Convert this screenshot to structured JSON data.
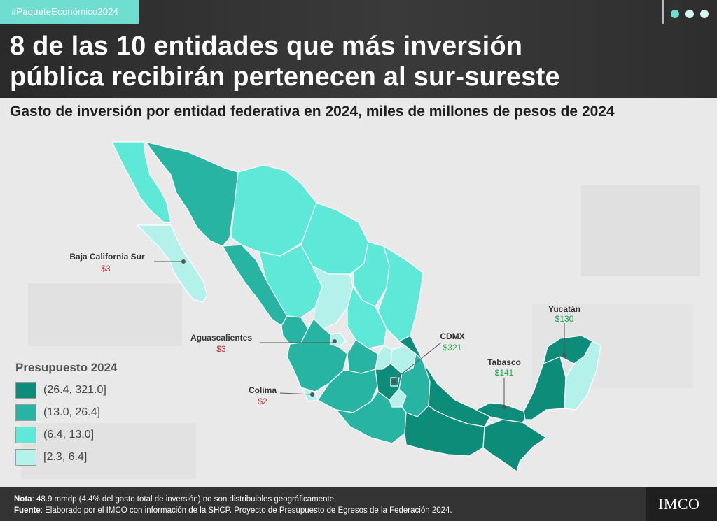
{
  "hashtag": "#PaqueteEconómico2024",
  "title_line1": "8 de las 10 entidades que más inversión",
  "title_line2": "pública recibirán pertenecen al sur-sureste",
  "subtitle": "Gasto de inversión por entidad federativa en 2024, miles de millones de pesos de 2024",
  "colors": {
    "bin1": "#0e8c7a",
    "bin2": "#28b4a2",
    "bin3": "#5ee8d8",
    "bin4": "#b4f1ea",
    "accent": "#6fded0",
    "low_value": "#c0303a",
    "high_value": "#18a84a"
  },
  "legend": {
    "title": "Presupuesto 2024",
    "items": [
      {
        "label": "(26.4, 321.0]",
        "color": "#0e8c7a"
      },
      {
        "label": "(13.0, 26.4]",
        "color": "#28b4a2"
      },
      {
        "label": "(6.4, 13.0]",
        "color": "#5ee8d8"
      },
      {
        "label": "[2.3, 6.4]",
        "color": "#b4f1ea"
      }
    ]
  },
  "callouts": [
    {
      "name": "Baja California Sur",
      "value": "$3",
      "tone": "low"
    },
    {
      "name": "Aguascalientes",
      "value": "$3",
      "tone": "low"
    },
    {
      "name": "Colima",
      "value": "$2",
      "tone": "low"
    },
    {
      "name": "CDMX",
      "value": "$321",
      "tone": "high"
    },
    {
      "name": "Tabasco",
      "value": "$141",
      "tone": "high"
    },
    {
      "name": "Yucatán",
      "value": "$130",
      "tone": "high"
    }
  ],
  "footer": {
    "note_label": "Nota",
    "note": ": 48.9 mmdp (4.4% del gasto total de inversión) no son distribuibles geográficamente.",
    "source_label": "Fuente",
    "source": ": Elaborado por el IMCO con información de la SHCP. Proyecto de Presupuesto de Egresos de la Federación 2024."
  },
  "logo": "IMCO"
}
